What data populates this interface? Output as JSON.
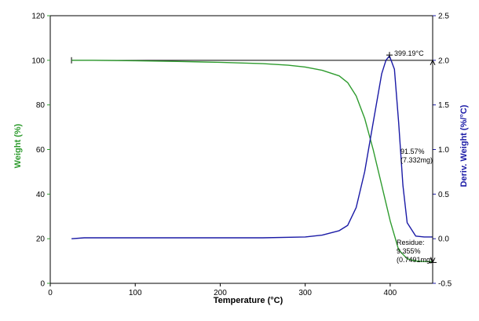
{
  "chart_data": {
    "type": "line",
    "title": "",
    "xlabel": "Temperature (°C)",
    "ylabel": "Weight (%)",
    "y2label": "Deriv. Weight (%/°C)",
    "xlim": [
      0,
      450
    ],
    "ylim": [
      0,
      120
    ],
    "y2lim": [
      -0.5,
      2.5
    ],
    "x_ticks": [
      "0",
      "100",
      "200",
      "300",
      "400"
    ],
    "y_ticks": [
      "0",
      "20",
      "40",
      "60",
      "80",
      "100",
      "120"
    ],
    "y2_ticks": [
      "-0.5",
      "0.0",
      "0.5",
      "1.0",
      "1.5",
      "2.0",
      "2.5"
    ],
    "colors": {
      "weight": "#2e9b2e",
      "deriv": "#1a1aa6",
      "left_axis": "#2e9b2e",
      "right_axis": "#1a1aa6",
      "frame": "#000000"
    },
    "series": [
      {
        "axis": "left",
        "x": [
          25,
          50,
          100,
          150,
          200,
          250,
          280,
          300,
          320,
          340,
          350,
          360,
          370,
          380,
          390,
          400,
          410,
          420,
          430,
          440,
          450
        ],
        "values": [
          100,
          100,
          99.8,
          99.5,
          99.1,
          98.5,
          97.8,
          97.0,
          95.5,
          93,
          90,
          84,
          74,
          60,
          44,
          28,
          15,
          11,
          10,
          9.8,
          9.7
        ]
      },
      {
        "axis": "right",
        "x": [
          25,
          40,
          100,
          200,
          250,
          300,
          320,
          340,
          350,
          360,
          370,
          380,
          390,
          395,
          399.19,
          405,
          410,
          415,
          420,
          430,
          440,
          450
        ],
        "values": [
          0.0,
          0.01,
          0.01,
          0.01,
          0.01,
          0.02,
          0.04,
          0.09,
          0.15,
          0.35,
          0.75,
          1.3,
          1.85,
          2.0,
          2.05,
          1.9,
          1.3,
          0.6,
          0.18,
          0.03,
          0.02,
          0.02
        ]
      }
    ],
    "annotations": {
      "peak_label": "399.19°C",
      "loss_pct": "91.57%",
      "loss_mass": "(7.332mg)",
      "residue_title": "Residue:",
      "residue_pct": "9.355%",
      "residue_mass": "(0.7491mg)"
    },
    "baseline_y": 100,
    "baseline_x": [
      25,
      450
    ],
    "residue_x": 450,
    "residue_y": 9.355,
    "peak_x": 399.19,
    "peak_y2": 2.05
  }
}
